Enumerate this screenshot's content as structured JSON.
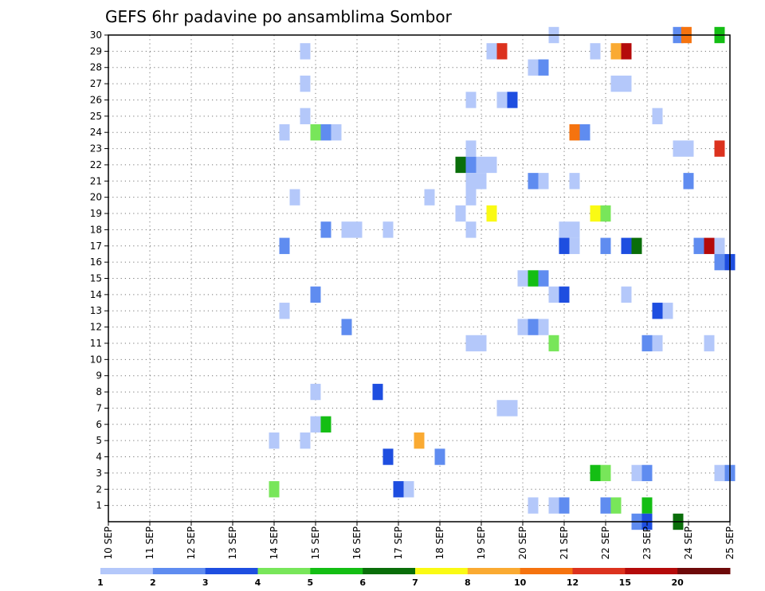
{
  "chart_data": {
    "type": "heatmap",
    "title": "GEFS 6hr padavine po ansamblima Sombor",
    "xlabel": "",
    "ylabel": "",
    "x_ticks": [
      "10 SEP",
      "11 SEP",
      "12 SEP",
      "13 SEP",
      "14 SEP",
      "15 SEP",
      "16 SEP",
      "17 SEP",
      "18 SEP",
      "19 SEP",
      "20 SEP",
      "21 SEP",
      "22 SEP",
      "23 SEP",
      "24 SEP",
      "25 SEP"
    ],
    "x_range": [
      0,
      15
    ],
    "y_ticks": [
      "1",
      "2",
      "3",
      "4",
      "5",
      "6",
      "7",
      "8",
      "9",
      "10",
      "11",
      "12",
      "13",
      "14",
      "15",
      "16",
      "17",
      "18",
      "19",
      "20",
      "21",
      "22",
      "23",
      "24",
      "25",
      "26",
      "27",
      "28",
      "29",
      "30"
    ],
    "y_range": [
      0,
      30
    ],
    "grid": true,
    "colorbar": {
      "labels": [
        "1",
        "2",
        "3",
        "4",
        "5",
        "6",
        "7",
        "8",
        "10",
        "12",
        "15",
        "20"
      ],
      "colors": [
        "#b4c8fa",
        "#5f8cf0",
        "#1e4ee0",
        "#78e65a",
        "#14be14",
        "#0a6e0a",
        "#fafa14",
        "#faaa32",
        "#f5730f",
        "#dc321e",
        "#b40a0a",
        "#6e0a0a"
      ]
    },
    "cells": [
      {
        "day": 10.75,
        "member": 30,
        "level": 1
      },
      {
        "day": 13.75,
        "member": 30,
        "level": 2
      },
      {
        "day": 13.95,
        "member": 30,
        "level": 9
      },
      {
        "day": 14.75,
        "member": 30,
        "level": 5
      },
      {
        "day": 4.75,
        "member": 29,
        "level": 1
      },
      {
        "day": 9.25,
        "member": 29,
        "level": 1
      },
      {
        "day": 9.5,
        "member": 29,
        "level": 10
      },
      {
        "day": 11.75,
        "member": 29,
        "level": 1
      },
      {
        "day": 12.25,
        "member": 29,
        "level": 8
      },
      {
        "day": 12.5,
        "member": 29,
        "level": 11
      },
      {
        "day": 10.25,
        "member": 28,
        "level": 1
      },
      {
        "day": 10.5,
        "member": 28,
        "level": 2
      },
      {
        "day": 4.75,
        "member": 27,
        "level": 1
      },
      {
        "day": 12.25,
        "member": 27,
        "level": 1
      },
      {
        "day": 12.5,
        "member": 27,
        "level": 1
      },
      {
        "day": 8.75,
        "member": 26,
        "level": 1
      },
      {
        "day": 9.5,
        "member": 26,
        "level": 1
      },
      {
        "day": 9.75,
        "member": 26,
        "level": 3
      },
      {
        "day": 4.75,
        "member": 25,
        "level": 1
      },
      {
        "day": 13.25,
        "member": 25,
        "level": 1
      },
      {
        "day": 4.25,
        "member": 24,
        "level": 1
      },
      {
        "day": 5.0,
        "member": 24,
        "level": 4
      },
      {
        "day": 5.25,
        "member": 24,
        "level": 2
      },
      {
        "day": 5.5,
        "member": 24,
        "level": 1
      },
      {
        "day": 11.25,
        "member": 24,
        "level": 9
      },
      {
        "day": 11.5,
        "member": 24,
        "level": 2
      },
      {
        "day": 8.75,
        "member": 23,
        "level": 1
      },
      {
        "day": 13.75,
        "member": 23,
        "level": 1
      },
      {
        "day": 14.0,
        "member": 23,
        "level": 1
      },
      {
        "day": 14.75,
        "member": 23,
        "level": 10
      },
      {
        "day": 8.5,
        "member": 22,
        "level": 6
      },
      {
        "day": 8.75,
        "member": 22,
        "level": 2
      },
      {
        "day": 9.0,
        "member": 22,
        "level": 1
      },
      {
        "day": 9.25,
        "member": 22,
        "level": 1
      },
      {
        "day": 8.75,
        "member": 21,
        "level": 1
      },
      {
        "day": 9.0,
        "member": 21,
        "level": 1
      },
      {
        "day": 10.25,
        "member": 21,
        "level": 2
      },
      {
        "day": 10.5,
        "member": 21,
        "level": 1
      },
      {
        "day": 11.25,
        "member": 21,
        "level": 1
      },
      {
        "day": 14.0,
        "member": 21,
        "level": 2
      },
      {
        "day": 4.5,
        "member": 20,
        "level": 1
      },
      {
        "day": 7.75,
        "member": 20,
        "level": 1
      },
      {
        "day": 8.75,
        "member": 20,
        "level": 1
      },
      {
        "day": 8.5,
        "member": 19,
        "level": 1
      },
      {
        "day": 9.25,
        "member": 19,
        "level": 7
      },
      {
        "day": 11.75,
        "member": 19,
        "level": 7
      },
      {
        "day": 12.0,
        "member": 19,
        "level": 4
      },
      {
        "day": 5.25,
        "member": 18,
        "level": 2
      },
      {
        "day": 5.75,
        "member": 18,
        "level": 1
      },
      {
        "day": 6.0,
        "member": 18,
        "level": 1
      },
      {
        "day": 6.75,
        "member": 18,
        "level": 1
      },
      {
        "day": 8.75,
        "member": 18,
        "level": 1
      },
      {
        "day": 11.0,
        "member": 18,
        "level": 1
      },
      {
        "day": 11.25,
        "member": 18,
        "level": 1
      },
      {
        "day": 4.25,
        "member": 17,
        "level": 2
      },
      {
        "day": 11.0,
        "member": 17,
        "level": 3
      },
      {
        "day": 11.25,
        "member": 17,
        "level": 1
      },
      {
        "day": 12.0,
        "member": 17,
        "level": 2
      },
      {
        "day": 12.5,
        "member": 17,
        "level": 3
      },
      {
        "day": 12.75,
        "member": 17,
        "level": 6
      },
      {
        "day": 14.25,
        "member": 17,
        "level": 2
      },
      {
        "day": 14.5,
        "member": 17,
        "level": 11
      },
      {
        "day": 14.75,
        "member": 17,
        "level": 1
      },
      {
        "day": 14.75,
        "member": 16,
        "level": 2
      },
      {
        "day": 15.0,
        "member": 16,
        "level": 3
      },
      {
        "day": 10.0,
        "member": 15,
        "level": 1
      },
      {
        "day": 10.25,
        "member": 15,
        "level": 5
      },
      {
        "day": 10.5,
        "member": 15,
        "level": 2
      },
      {
        "day": 5.0,
        "member": 14,
        "level": 2
      },
      {
        "day": 10.75,
        "member": 14,
        "level": 1
      },
      {
        "day": 11.0,
        "member": 14,
        "level": 3
      },
      {
        "day": 12.5,
        "member": 14,
        "level": 1
      },
      {
        "day": 4.25,
        "member": 13,
        "level": 1
      },
      {
        "day": 13.25,
        "member": 13,
        "level": 3
      },
      {
        "day": 13.5,
        "member": 13,
        "level": 1
      },
      {
        "day": 5.75,
        "member": 12,
        "level": 2
      },
      {
        "day": 10.0,
        "member": 12,
        "level": 1
      },
      {
        "day": 10.25,
        "member": 12,
        "level": 2
      },
      {
        "day": 10.5,
        "member": 12,
        "level": 1
      },
      {
        "day": 8.75,
        "member": 11,
        "level": 1
      },
      {
        "day": 9.0,
        "member": 11,
        "level": 1
      },
      {
        "day": 10.75,
        "member": 11,
        "level": 4
      },
      {
        "day": 13.0,
        "member": 11,
        "level": 2
      },
      {
        "day": 13.25,
        "member": 11,
        "level": 1
      },
      {
        "day": 14.5,
        "member": 11,
        "level": 1
      },
      {
        "day": 5.0,
        "member": 8,
        "level": 1
      },
      {
        "day": 6.5,
        "member": 8,
        "level": 3
      },
      {
        "day": 9.5,
        "member": 7,
        "level": 1
      },
      {
        "day": 9.75,
        "member": 7,
        "level": 1
      },
      {
        "day": 5.0,
        "member": 6,
        "level": 1
      },
      {
        "day": 5.25,
        "member": 6,
        "level": 5
      },
      {
        "day": 4.0,
        "member": 5,
        "level": 1
      },
      {
        "day": 4.75,
        "member": 5,
        "level": 1
      },
      {
        "day": 7.5,
        "member": 5,
        "level": 8
      },
      {
        "day": 6.75,
        "member": 4,
        "level": 3
      },
      {
        "day": 8.0,
        "member": 4,
        "level": 2
      },
      {
        "day": 11.75,
        "member": 3,
        "level": 5
      },
      {
        "day": 12.0,
        "member": 3,
        "level": 4
      },
      {
        "day": 12.75,
        "member": 3,
        "level": 1
      },
      {
        "day": 13.0,
        "member": 3,
        "level": 2
      },
      {
        "day": 14.75,
        "member": 3,
        "level": 1
      },
      {
        "day": 15.0,
        "member": 3,
        "level": 2
      },
      {
        "day": 4.0,
        "member": 2,
        "level": 4
      },
      {
        "day": 7.0,
        "member": 2,
        "level": 3
      },
      {
        "day": 7.25,
        "member": 2,
        "level": 1
      },
      {
        "day": 10.25,
        "member": 1,
        "level": 1
      },
      {
        "day": 10.75,
        "member": 1,
        "level": 1
      },
      {
        "day": 11.0,
        "member": 1,
        "level": 2
      },
      {
        "day": 12.0,
        "member": 1,
        "level": 2
      },
      {
        "day": 12.25,
        "member": 1,
        "level": 4
      },
      {
        "day": 13.0,
        "member": 1,
        "level": 5
      },
      {
        "day": 12.75,
        "member": 0,
        "level": 2
      },
      {
        "day": 13.0,
        "member": 0,
        "level": 3
      },
      {
        "day": 13.75,
        "member": 0,
        "level": 6
      }
    ]
  }
}
